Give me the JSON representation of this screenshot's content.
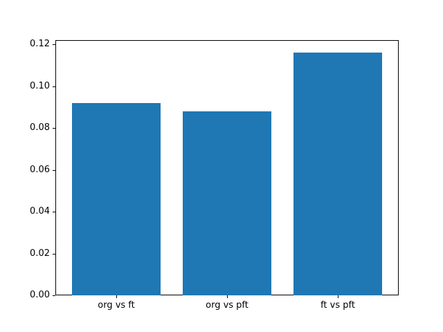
{
  "chart_data": {
    "type": "bar",
    "title": "",
    "xlabel": "",
    "ylabel": "",
    "categories": [
      "org vs ft",
      "org vs pft",
      "ft vs pft"
    ],
    "values": [
      0.092,
      0.088,
      0.116
    ],
    "bar_color": "#1f77b4",
    "background_color": "#ffffff",
    "axis_color": "#000000",
    "grid": false,
    "legend": null,
    "ylim": [
      0,
      0.122
    ],
    "xlim": [
      -0.55,
      2.55
    ],
    "bar_width": 0.8,
    "yticks": [
      0.0,
      0.02,
      0.04,
      0.06,
      0.08,
      0.1,
      0.12
    ],
    "ytick_labels": [
      "0.00",
      "0.02",
      "0.04",
      "0.06",
      "0.08",
      "0.10",
      "0.12"
    ]
  }
}
